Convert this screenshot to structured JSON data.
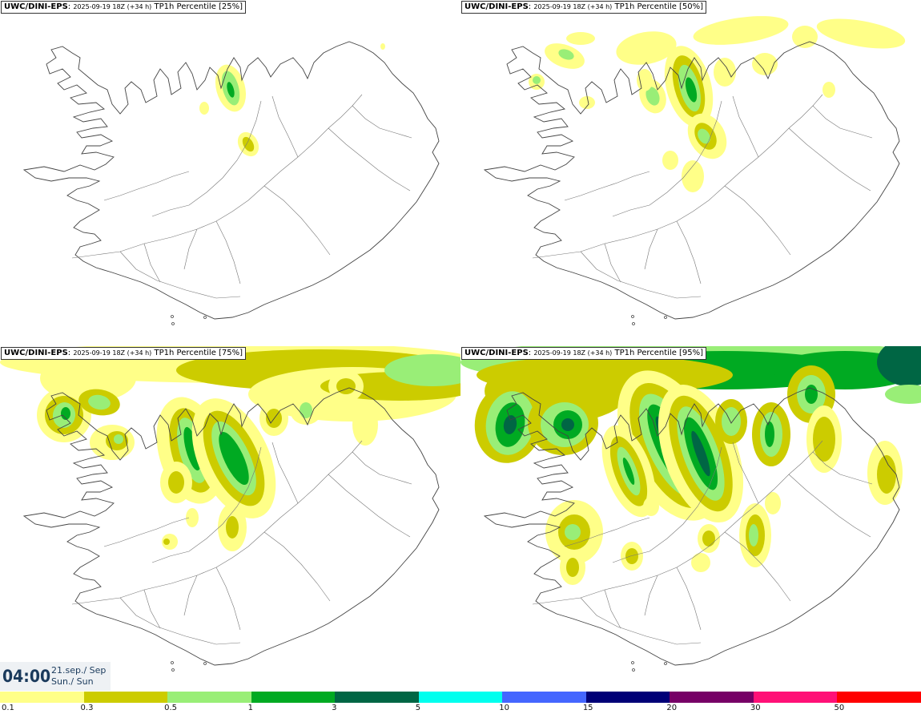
{
  "panels": [
    {
      "product": "UWC/DINI-EPS",
      "run": "2025-09-19 18Z (+34 h)",
      "field": "TP1h Percentile [25%]",
      "level": 1
    },
    {
      "product": "UWC/DINI-EPS",
      "run": "2025-09-19 18Z (+34 h)",
      "field": "TP1h Percentile [50%]",
      "level": 2
    },
    {
      "product": "UWC/DINI-EPS",
      "run": "2025-09-19 18Z (+34 h)",
      "field": "TP1h Percentile [75%]",
      "level": 3
    },
    {
      "product": "UWC/DINI-EPS",
      "run": "2025-09-19 18Z (+34 h)",
      "field": "TP1h Percentile [95%]",
      "level": 4
    }
  ],
  "time": {
    "clock": "04:00",
    "date_line1": "21.sep./ Sep",
    "date_line2": "Sun./ Sun"
  },
  "legend": {
    "bins": [
      {
        "label": "0.1",
        "color": "#ffff88"
      },
      {
        "label": "0.3",
        "color": "#cccc00"
      },
      {
        "label": "0.5",
        "color": "#99ee77"
      },
      {
        "label": "1",
        "color": "#00aa22"
      },
      {
        "label": "3",
        "color": "#006644"
      },
      {
        "label": "5",
        "color": "#00ffee"
      },
      {
        "label": "10",
        "color": "#4466ff"
      },
      {
        "label": "15",
        "color": "#000077"
      },
      {
        "label": "20",
        "color": "#770066"
      },
      {
        "label": "30",
        "color": "#ff1177"
      },
      {
        "label": "50",
        "color": "#ff0000"
      }
    ]
  }
}
